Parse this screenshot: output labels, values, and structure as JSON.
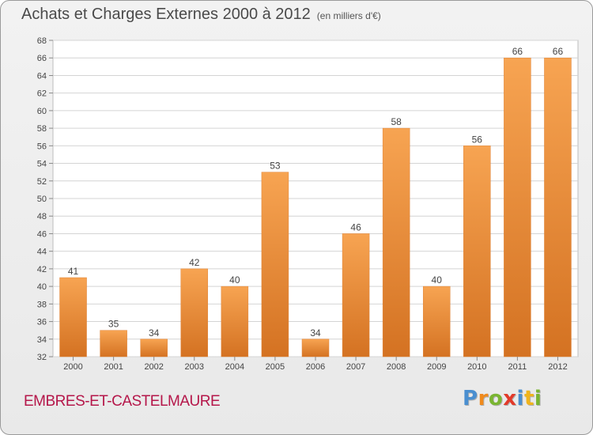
{
  "chart_data": {
    "type": "bar",
    "title": "Achats et Charges Externes 2000 à 2012",
    "subtitle": "(en milliers d'€)",
    "categories": [
      "2000",
      "2001",
      "2002",
      "2003",
      "2004",
      "2005",
      "2006",
      "2007",
      "2008",
      "2009",
      "2010",
      "2011",
      "2012"
    ],
    "values": [
      41,
      35,
      34,
      42,
      40,
      53,
      34,
      46,
      58,
      40,
      56,
      66,
      66
    ],
    "ylim": [
      32,
      68
    ],
    "ytick_step": 2,
    "grid": "horizontal",
    "legend": "none",
    "bar_color_light": "#f7a452",
    "bar_color_dark": "#d47222"
  },
  "footer": {
    "commune": "EMBRES-ET-CASTELMAURE",
    "logo_letters": [
      {
        "char": "P",
        "color": "#4a8fd0"
      },
      {
        "char": "r",
        "color": "#f08a1c"
      },
      {
        "char": "o",
        "color": "#7ab532"
      },
      {
        "char": "x",
        "color": "#e23a2a"
      },
      {
        "char": "i",
        "color": "#4a8fd0"
      },
      {
        "char": "t",
        "color": "#f0b41c"
      },
      {
        "char": "i",
        "color": "#7ab532"
      }
    ]
  },
  "colors": {
    "commune": "#b5174a",
    "title": "#4a4a4a"
  }
}
